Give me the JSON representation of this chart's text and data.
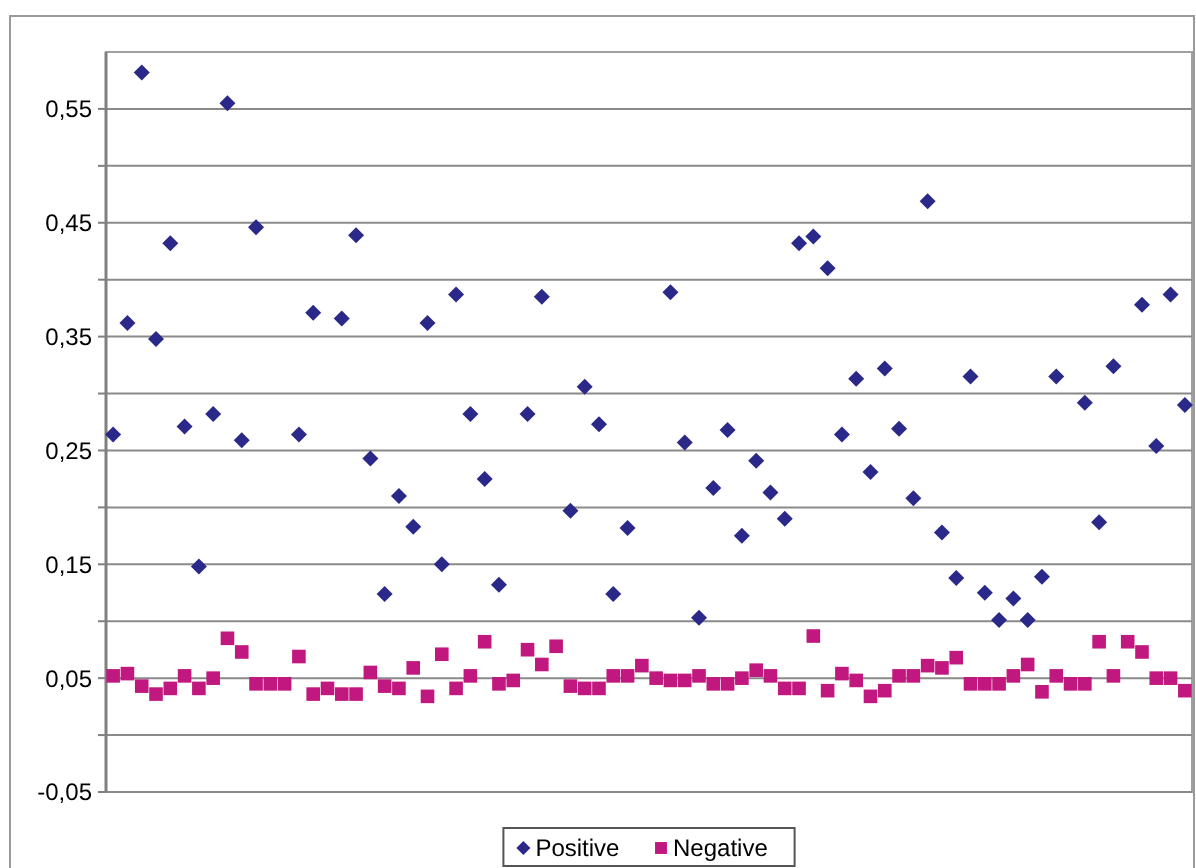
{
  "chart_data": {
    "type": "scatter",
    "categories": [
      null,
      null,
      null,
      null,
      null,
      null,
      null,
      null,
      null,
      null,
      null,
      null,
      null,
      null,
      null,
      null,
      null,
      null,
      null,
      null,
      null,
      null,
      null,
      null,
      null,
      null,
      null,
      null,
      null,
      null,
      null,
      null,
      null,
      null,
      null,
      null,
      null,
      null,
      null,
      null,
      null,
      null,
      null,
      null,
      null,
      null,
      null,
      null,
      null,
      null,
      null,
      null,
      null,
      null,
      null,
      null,
      null,
      null,
      null,
      null,
      null,
      null,
      null,
      null,
      null,
      null,
      null,
      null,
      null,
      null,
      null,
      null,
      null,
      null,
      null,
      null
    ],
    "series": [
      {
        "name": "Positive",
        "color": "#2a2888",
        "marker": "diamond",
        "values": [
          0.264,
          0.362,
          0.582,
          0.348,
          0.432,
          0.271,
          0.148,
          0.282,
          0.555,
          0.259,
          0.446,
          null,
          null,
          0.264,
          0.371,
          null,
          0.366,
          0.439,
          0.243,
          0.124,
          0.21,
          0.183,
          0.362,
          0.15,
          0.387,
          0.282,
          0.225,
          0.132,
          null,
          0.282,
          0.385,
          null,
          0.197,
          0.306,
          0.273,
          0.124,
          0.182,
          null,
          null,
          0.389,
          0.257,
          0.103,
          0.217,
          0.268,
          0.175,
          0.241,
          0.213,
          0.19,
          0.432,
          0.438,
          0.41,
          0.264,
          0.313,
          0.231,
          0.322,
          0.269,
          0.208,
          0.469,
          0.178,
          0.138,
          0.315,
          0.125,
          0.101,
          0.12,
          0.101,
          0.139,
          0.315,
          null,
          0.292,
          0.187,
          0.324,
          null,
          0.378,
          0.254,
          0.387,
          0.29
        ]
      },
      {
        "name": "Negative",
        "color": "#c0187e",
        "marker": "square",
        "values": [
          0.052,
          0.054,
          0.043,
          0.036,
          0.041,
          0.052,
          0.041,
          0.05,
          0.085,
          0.073,
          0.045,
          0.045,
          0.045,
          0.069,
          0.036,
          0.041,
          0.036,
          0.036,
          0.055,
          0.043,
          0.041,
          0.059,
          0.034,
          0.071,
          0.041,
          0.052,
          0.082,
          0.045,
          0.048,
          0.075,
          0.062,
          0.078,
          0.043,
          0.041,
          0.041,
          0.052,
          0.052,
          0.061,
          0.05,
          0.048,
          0.048,
          0.052,
          0.045,
          0.045,
          0.05,
          0.057,
          0.052,
          0.041,
          0.041,
          0.087,
          0.039,
          0.054,
          0.048,
          0.034,
          0.039,
          0.052,
          0.052,
          0.061,
          0.059,
          0.068,
          0.045,
          0.045,
          0.045,
          0.052,
          0.062,
          0.038,
          0.052,
          0.045,
          0.045,
          0.082,
          0.052,
          0.082,
          0.073,
          0.05,
          0.05,
          0.039
        ]
      }
    ],
    "ylim": [
      -0.05,
      0.6
    ],
    "yticks": [
      {
        "value": -0.05,
        "label": "-0,05"
      },
      {
        "value": 0,
        "label": null
      },
      {
        "value": 0.05,
        "label": "0,05"
      },
      {
        "value": 0.1,
        "label": null
      },
      {
        "value": 0.15,
        "label": "0,15"
      },
      {
        "value": 0.2,
        "label": null
      },
      {
        "value": 0.25,
        "label": "0,25"
      },
      {
        "value": 0.3,
        "label": null
      },
      {
        "value": 0.35,
        "label": "0,35"
      },
      {
        "value": 0.4,
        "label": null
      },
      {
        "value": 0.45,
        "label": "0,45"
      },
      {
        "value": 0.5,
        "label": null
      },
      {
        "value": 0.55,
        "label": "0,55"
      }
    ],
    "grid": "y",
    "legend": "bottom"
  }
}
